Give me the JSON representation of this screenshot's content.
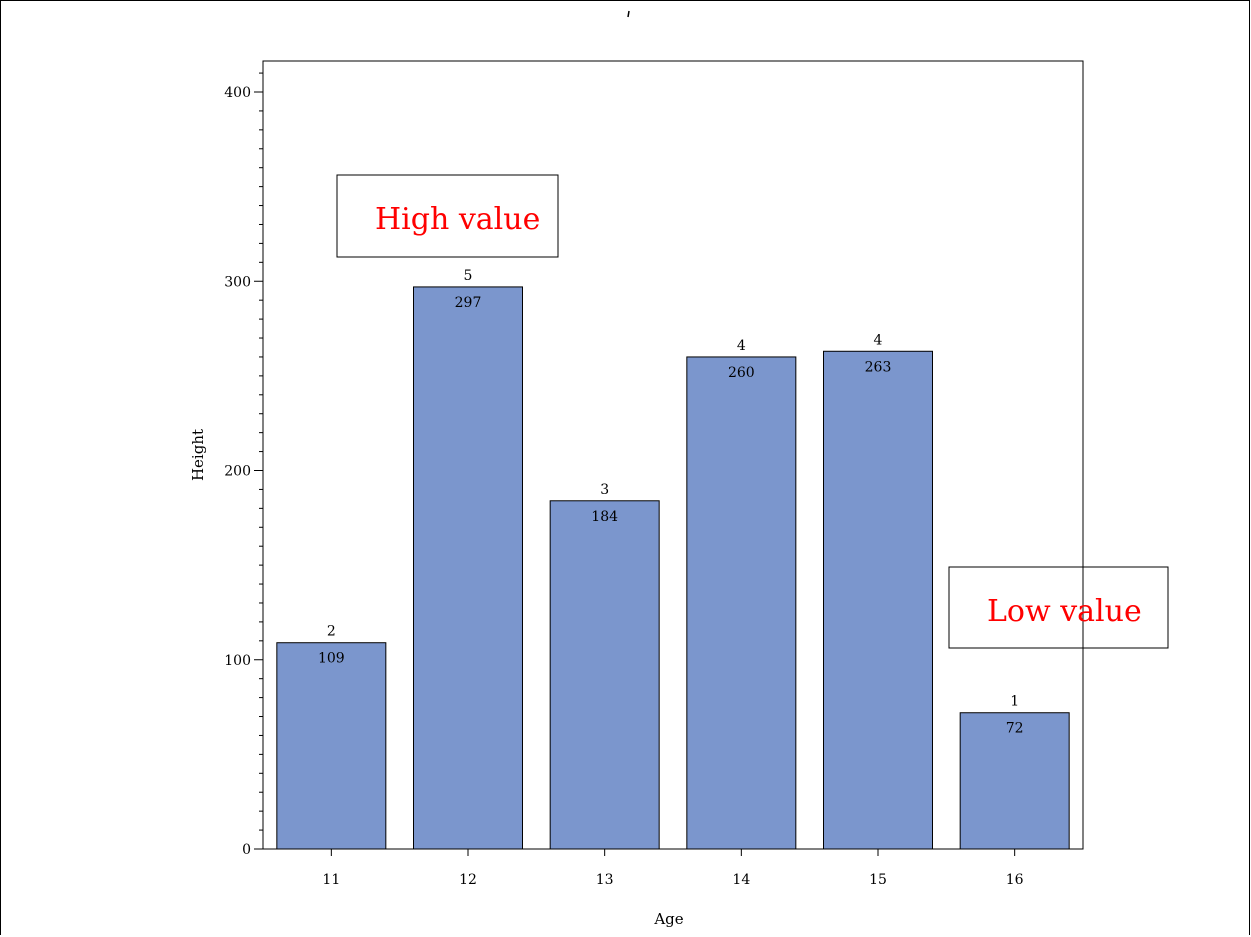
{
  "chart_data": {
    "type": "bar",
    "title": "",
    "xlabel": "Age",
    "ylabel": "Height",
    "categories": [
      "11",
      "12",
      "13",
      "14",
      "15",
      "16"
    ],
    "values": [
      109,
      297,
      184,
      260,
      263,
      72
    ],
    "counts": [
      2,
      5,
      3,
      4,
      4,
      1
    ],
    "ylim": [
      0,
      415
    ],
    "yticks": [
      0,
      100,
      200,
      300,
      400
    ],
    "grid": false,
    "bar_color": "#7b96cd",
    "annotations": [
      {
        "text": "High value",
        "color": "#ff0000"
      },
      {
        "text": "Low value",
        "color": "#ff0000"
      }
    ]
  }
}
